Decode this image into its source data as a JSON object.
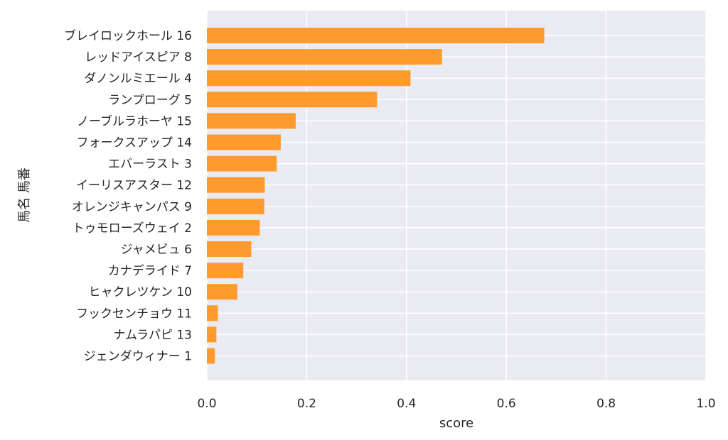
{
  "chart_data": {
    "type": "bar",
    "orientation": "horizontal",
    "categories": [
      "ブレイロックホール 16",
      "レッドアイスピア 8",
      "ダノンルミエール 4",
      "ランプローグ 5",
      "ノーブルラホーヤ 15",
      "フォークスアップ 14",
      "エバーラスト 3",
      "イーリスアスター 12",
      "オレンジキャンパス 9",
      "トゥモローズウェイ 2",
      "ジャメビュ 6",
      "カナデライド 7",
      "ヒャクレツケン 10",
      "フックセンチョウ 11",
      "ナムラパピ 13",
      "ジェンダウィナー 1"
    ],
    "values": [
      0.676,
      0.471,
      0.408,
      0.341,
      0.178,
      0.148,
      0.14,
      0.116,
      0.115,
      0.106,
      0.089,
      0.073,
      0.061,
      0.022,
      0.019,
      0.016
    ],
    "xlabel": "score",
    "ylabel": "馬名 馬番",
    "xlim": [
      0,
      1.0
    ],
    "xticks": [
      "0.0",
      "0.2",
      "0.4",
      "0.6",
      "0.8",
      "1.0"
    ],
    "grid": true,
    "bar_color": "#ff9a2e",
    "background_color": "#eaeaf2"
  }
}
